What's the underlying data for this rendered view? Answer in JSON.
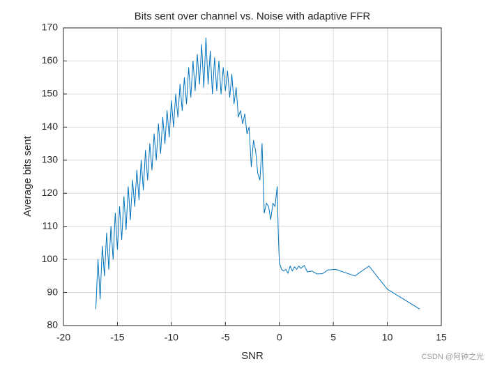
{
  "chart_data": {
    "type": "line",
    "title": "Bits sent over channel vs. Noise with adaptive FFR",
    "x_label": "SNR",
    "y_label": "Average bits sent",
    "watermark": "CSDN @阿钟之光",
    "xlim": [
      -20,
      15
    ],
    "xticks": [
      -20,
      -15,
      -10,
      -5,
      0,
      5,
      10,
      15
    ],
    "ylim": [
      80,
      170
    ],
    "yticks": [
      80,
      90,
      100,
      110,
      120,
      130,
      140,
      150,
      160,
      170
    ],
    "grid": true,
    "series": [
      {
        "color": "#0072BD",
        "x": [
          -17,
          -16.8,
          -16.6,
          -16.4,
          -16.2,
          -16,
          -15.8,
          -15.6,
          -15.4,
          -15.2,
          -15,
          -14.8,
          -14.6,
          -14.4,
          -14.2,
          -14,
          -13.8,
          -13.6,
          -13.4,
          -13.2,
          -13,
          -12.8,
          -12.6,
          -12.4,
          -12.2,
          -12,
          -11.8,
          -11.6,
          -11.4,
          -11.2,
          -11,
          -10.8,
          -10.6,
          -10.4,
          -10.2,
          -10,
          -9.8,
          -9.6,
          -9.4,
          -9.2,
          -9,
          -8.8,
          -8.6,
          -8.4,
          -8.2,
          -8,
          -7.8,
          -7.6,
          -7.4,
          -7.2,
          -7,
          -6.8,
          -6.6,
          -6.4,
          -6.2,
          -6,
          -5.8,
          -5.6,
          -5.4,
          -5.2,
          -5,
          -4.8,
          -4.6,
          -4.4,
          -4.2,
          -4,
          -3.8,
          -3.6,
          -3.4,
          -3.2,
          -3,
          -2.8,
          -2.6,
          -2.4,
          -2.2,
          -2,
          -1.8,
          -1.6,
          -1.4,
          -1.2,
          -1,
          -0.8,
          -0.6,
          -0.4,
          -0.2,
          -0.1,
          0,
          0.2,
          0.4,
          0.6,
          0.8,
          1,
          1.2,
          1.4,
          1.6,
          1.8,
          2,
          2.3,
          2.6,
          3,
          3.5,
          4,
          4.5,
          5.2,
          7,
          8.3,
          10,
          13
        ],
        "values": [
          85,
          100,
          88,
          104,
          95,
          108,
          97,
          110,
          100,
          114,
          103,
          116,
          106,
          119,
          109,
          122,
          112,
          124,
          116,
          127,
          118,
          130,
          121,
          133,
          124,
          135,
          127,
          138,
          130,
          141,
          132,
          143,
          135,
          145,
          137,
          148,
          140,
          150,
          143,
          153,
          145,
          155,
          147,
          158,
          149,
          160,
          151,
          162,
          153,
          165,
          152,
          167,
          153,
          163,
          150,
          161,
          151,
          160,
          150,
          158,
          151,
          157,
          149,
          156,
          147,
          152,
          143,
          145,
          141,
          144,
          138,
          140,
          128,
          136,
          133,
          126,
          124,
          135,
          114,
          117,
          116,
          112,
          117,
          116,
          122,
          108,
          99,
          97,
          96.5,
          97,
          95.8,
          98,
          96.5,
          97.8,
          97,
          98,
          97.3,
          98.2,
          96.2,
          96.5,
          95.6,
          95.7,
          96.8,
          97,
          95,
          98,
          91,
          85
        ]
      }
    ]
  }
}
